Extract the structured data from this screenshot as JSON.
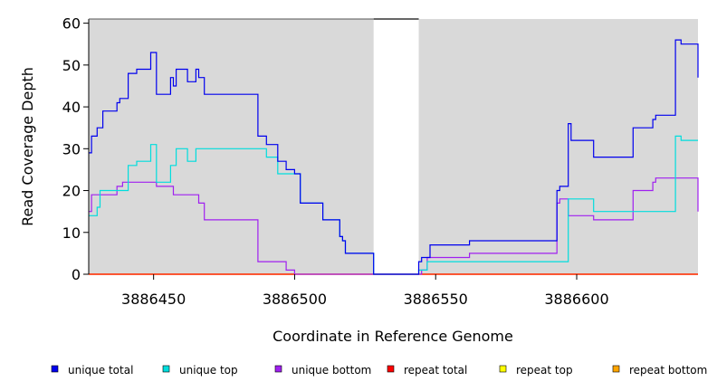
{
  "chart_data": {
    "type": "line",
    "step": true,
    "xlabel": "Coordinate in Reference Genome",
    "ylabel": "Read Coverage Depth",
    "xlim": [
      3886427,
      3886643
    ],
    "ylim": [
      0,
      61
    ],
    "x_ticks": [
      3886450,
      3886500,
      3886550,
      3886600
    ],
    "y_ticks": [
      0,
      10,
      20,
      30,
      40,
      50,
      60
    ],
    "x_tick_labels": [
      "3886450",
      "3886500",
      "3886550",
      "3886600"
    ],
    "y_tick_labels": [
      "0",
      "10",
      "20",
      "30",
      "40",
      "50",
      "60"
    ],
    "gap": [
      3886528,
      3886544
    ],
    "background_color": "#d9d9d9",
    "series": [
      {
        "name": "unique total",
        "color": "#0000ee",
        "points": [
          [
            3886427,
            29
          ],
          [
            3886428,
            33
          ],
          [
            3886430,
            35
          ],
          [
            3886432,
            39
          ],
          [
            3886437,
            41
          ],
          [
            3886438,
            42
          ],
          [
            3886441,
            48
          ],
          [
            3886443,
            48
          ],
          [
            3886444,
            49
          ],
          [
            3886448,
            49
          ],
          [
            3886449,
            53
          ],
          [
            3886451,
            43
          ],
          [
            3886456,
            47
          ],
          [
            3886457,
            45
          ],
          [
            3886458,
            49
          ],
          [
            3886462,
            46
          ],
          [
            3886465,
            49
          ],
          [
            3886466,
            47
          ],
          [
            3886468,
            43
          ],
          [
            3886481,
            43
          ],
          [
            3886487,
            33
          ],
          [
            3886490,
            31
          ],
          [
            3886494,
            27
          ],
          [
            3886497,
            25
          ],
          [
            3886500,
            24
          ],
          [
            3886502,
            17
          ],
          [
            3886510,
            13
          ],
          [
            3886516,
            9
          ],
          [
            3886517,
            8
          ],
          [
            3886518,
            5
          ],
          [
            3886524,
            5
          ],
          [
            3886528,
            0
          ],
          [
            3886544,
            0
          ],
          [
            3886544,
            3
          ],
          [
            3886545,
            4
          ],
          [
            3886548,
            7
          ],
          [
            3886562,
            8
          ],
          [
            3886583,
            8
          ],
          [
            3886592,
            8
          ],
          [
            3886593,
            20
          ],
          [
            3886594,
            21
          ],
          [
            3886597,
            36
          ],
          [
            3886598,
            32
          ],
          [
            3886606,
            28
          ],
          [
            3886620,
            35
          ],
          [
            3886627,
            37
          ],
          [
            3886628,
            38
          ],
          [
            3886635,
            56
          ],
          [
            3886637,
            55
          ],
          [
            3886643,
            47
          ]
        ]
      },
      {
        "name": "unique top",
        "color": "#00dddd",
        "points": [
          [
            3886427,
            14
          ],
          [
            3886430,
            16
          ],
          [
            3886431,
            20
          ],
          [
            3886435,
            20
          ],
          [
            3886441,
            26
          ],
          [
            3886444,
            27
          ],
          [
            3886448,
            27
          ],
          [
            3886449,
            31
          ],
          [
            3886451,
            22
          ],
          [
            3886454,
            22
          ],
          [
            3886456,
            26
          ],
          [
            3886458,
            30
          ],
          [
            3886462,
            27
          ],
          [
            3886465,
            30
          ],
          [
            3886481,
            30
          ],
          [
            3886487,
            30
          ],
          [
            3886490,
            28
          ],
          [
            3886494,
            24
          ],
          [
            3886497,
            24
          ],
          [
            3886500,
            24
          ],
          [
            3886502,
            17
          ],
          [
            3886510,
            13
          ],
          [
            3886516,
            9
          ],
          [
            3886517,
            8
          ],
          [
            3886518,
            5
          ],
          [
            3886524,
            5
          ],
          [
            3886528,
            0
          ],
          [
            3886544,
            0
          ],
          [
            3886544,
            1
          ],
          [
            3886547,
            3
          ],
          [
            3886562,
            3
          ],
          [
            3886583,
            3
          ],
          [
            3886592,
            3
          ],
          [
            3886597,
            18
          ],
          [
            3886606,
            15
          ],
          [
            3886620,
            15
          ],
          [
            3886627,
            15
          ],
          [
            3886635,
            33
          ],
          [
            3886637,
            32
          ],
          [
            3886643,
            32
          ]
        ]
      },
      {
        "name": "unique bottom",
        "color": "#a020f0",
        "points": [
          [
            3886427,
            15
          ],
          [
            3886428,
            19
          ],
          [
            3886431,
            19
          ],
          [
            3886437,
            21
          ],
          [
            3886438,
            21
          ],
          [
            3886439,
            22
          ],
          [
            3886445,
            22
          ],
          [
            3886448,
            22
          ],
          [
            3886451,
            21
          ],
          [
            3886457,
            19
          ],
          [
            3886462,
            19
          ],
          [
            3886466,
            17
          ],
          [
            3886468,
            13
          ],
          [
            3886475,
            13
          ],
          [
            3886481,
            13
          ],
          [
            3886487,
            3
          ],
          [
            3886494,
            3
          ],
          [
            3886497,
            1
          ],
          [
            3886500,
            0
          ],
          [
            3886528,
            0
          ],
          [
            3886544,
            0
          ],
          [
            3886545,
            1
          ],
          [
            3886547,
            4
          ],
          [
            3886555,
            4
          ],
          [
            3886562,
            5
          ],
          [
            3886583,
            5
          ],
          [
            3886592,
            5
          ],
          [
            3886593,
            17
          ],
          [
            3886594,
            18
          ],
          [
            3886597,
            14
          ],
          [
            3886606,
            13
          ],
          [
            3886620,
            20
          ],
          [
            3886627,
            22
          ],
          [
            3886628,
            23
          ],
          [
            3886635,
            23
          ],
          [
            3886643,
            15
          ]
        ]
      },
      {
        "name": "repeat total",
        "color": "#ff0000",
        "points": [
          [
            3886427,
            0
          ],
          [
            3886643,
            0
          ]
        ]
      },
      {
        "name": "repeat top",
        "color": "#ffff00",
        "points": [
          [
            3886427,
            0
          ],
          [
            3886643,
            0
          ]
        ]
      },
      {
        "name": "repeat bottom",
        "color": "#ffa500",
        "points": [
          [
            3886427,
            0
          ],
          [
            3886643,
            0
          ]
        ]
      }
    ],
    "legend_position": "bottom"
  }
}
